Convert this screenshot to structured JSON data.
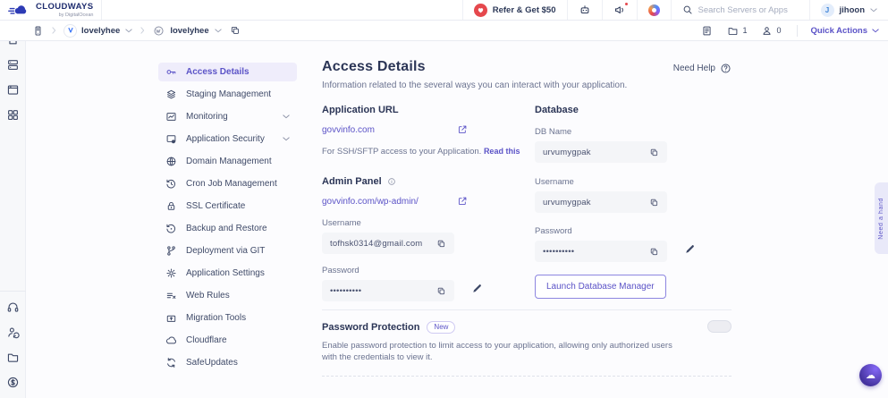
{
  "colors": {
    "accent": "#5b53c7",
    "accent_light_bg": "#efedfb",
    "danger": "#e5484d",
    "text_dark": "#2b3556",
    "text_gray": "#6b7390",
    "field_bg": "#f4f5f8",
    "border": "#e9ebf2"
  },
  "header": {
    "brand": "CLOUDWAYS",
    "brand_sub": "by DigitalOcean",
    "refer_label": "Refer & Get $50",
    "search_placeholder": "Search Servers or Apps",
    "user_initial": "J",
    "user_name": "jihoon",
    "icons": [
      "heart-icon",
      "bot-icon",
      "megaphone-icon",
      "cloudways-color-icon",
      "search-icon",
      "chevron-down-icon"
    ]
  },
  "breadcrumb": {
    "server_name": "lovelyhee",
    "app_name": "lovelyhee",
    "projects_count": "1",
    "team_count": "0",
    "quick_actions_label": "Quick Actions",
    "icons": [
      "server-tower-icon",
      "vultr-icon",
      "wordpress-icon",
      "duplicate-icon",
      "report-icon",
      "folder-icon",
      "team-icon"
    ]
  },
  "rail_icons": [
    "home-icon",
    "servers-icon",
    "apps-icon",
    "projects-icon",
    "support-icon",
    "affiliate-icon",
    "files-icon",
    "billing-icon"
  ],
  "sidebar": {
    "items": [
      {
        "label": "Access Details",
        "icon": "key-icon",
        "active": true,
        "has_submenu": false
      },
      {
        "label": "Staging Management",
        "icon": "layers-icon",
        "active": false,
        "has_submenu": false
      },
      {
        "label": "Monitoring",
        "icon": "chart-icon",
        "active": false,
        "has_submenu": true
      },
      {
        "label": "Application Security",
        "icon": "window-lock-icon",
        "active": false,
        "has_submenu": true
      },
      {
        "label": "Domain Management",
        "icon": "globe-icon",
        "active": false,
        "has_submenu": false
      },
      {
        "label": "Cron Job Management",
        "icon": "clock-icon",
        "active": false,
        "has_submenu": false
      },
      {
        "label": "SSL Certificate",
        "icon": "lock-icon",
        "active": false,
        "has_submenu": false
      },
      {
        "label": "Backup and Restore",
        "icon": "history-icon",
        "active": false,
        "has_submenu": false
      },
      {
        "label": "Deployment via GIT",
        "icon": "git-branch-icon",
        "active": false,
        "has_submenu": false
      },
      {
        "label": "Application Settings",
        "icon": "gear-icon",
        "active": false,
        "has_submenu": false
      },
      {
        "label": "Web Rules",
        "icon": "list-x-icon",
        "active": false,
        "has_submenu": false
      },
      {
        "label": "Migration Tools",
        "icon": "migrate-icon",
        "active": false,
        "has_submenu": false
      },
      {
        "label": "Cloudflare",
        "icon": "cloud-icon",
        "active": false,
        "has_submenu": false
      },
      {
        "label": "SafeUpdates",
        "icon": "sync-icon",
        "active": false,
        "has_submenu": false
      }
    ]
  },
  "main": {
    "title": "Access Details",
    "subtitle": "Information related to the several ways you can interact with your application.",
    "need_help_label": "Need Help",
    "application_url": {
      "heading": "Application URL",
      "url": "govvinfo.com",
      "note": "For SSH/SFTP access to your Application.",
      "note_link": "Read this"
    },
    "admin_panel": {
      "heading": "Admin Panel",
      "url": "govvinfo.com/wp-admin/",
      "username_label": "Username",
      "username_value": "tofhsk0314@gmail.com",
      "password_label": "Password",
      "password_value": "••••••••••"
    },
    "database": {
      "heading": "Database",
      "db_name_label": "DB Name",
      "db_name_value": "urvumygpak",
      "username_label": "Username",
      "username_value": "urvumygpak",
      "password_label": "Password",
      "password_value": "••••••••••",
      "launch_button_label": "Launch Database Manager"
    },
    "password_protection": {
      "heading": "Password Protection",
      "badge": "New",
      "description": "Enable password protection to limit access to your application, allowing only authorized users with the credentials to view it.",
      "enabled": false
    }
  },
  "right_edge_tab": "Need a hand",
  "floating_bot_icon": "cloud-bot-icon"
}
